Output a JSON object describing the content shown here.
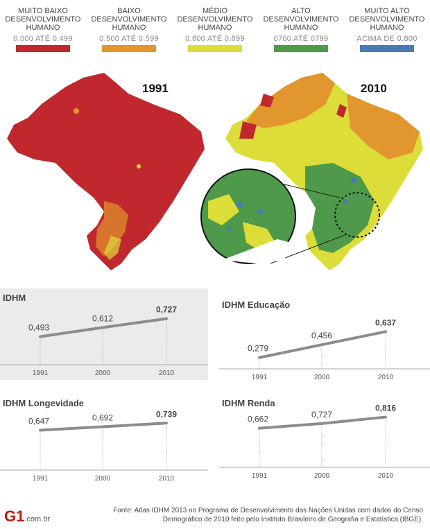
{
  "legend": [
    {
      "label": "MUITO BAIXO DESENVOLVIMENTO HUMANO",
      "range": "0.000 ATÉ 0.499",
      "color": "#c0282d"
    },
    {
      "label": "BAIXO DESENVOLVIMENTO HUMANO",
      "range": "0.500 ATÉ 0.599",
      "color": "#e2962e"
    },
    {
      "label": "MÉDIO DESENVOLVIMENTO HUMANO",
      "range": "0.600 ATÉ 0.699",
      "color": "#dddd3a"
    },
    {
      "label": "ALTO DESENVOLVIMENTO HUMANO",
      "range": "0700 ATÉ 0799",
      "color": "#4e9a4a"
    },
    {
      "label": "MUITO ALTO DESENVOLVIMENTO HUMANO",
      "range": "ACIMA DE 0.800",
      "color": "#4a7ab4"
    }
  ],
  "maps": {
    "left_year": "1991",
    "right_year": "2010"
  },
  "chart_data": [
    {
      "type": "line",
      "title": "IDHM",
      "x": [
        "1991",
        "2000",
        "2010"
      ],
      "values": [
        0.493,
        0.612,
        0.727
      ],
      "labels": [
        "0,493",
        "0,612",
        "0,727"
      ],
      "ylim": [
        0.2,
        0.85
      ],
      "background": "#ebebeb"
    },
    {
      "type": "line",
      "title": "IDHM Educação",
      "x": [
        "1991",
        "2000",
        "2010"
      ],
      "values": [
        0.279,
        0.456,
        0.637
      ],
      "labels": [
        "0,279",
        "0,456",
        "0,637"
      ],
      "ylim": [
        0.2,
        0.85
      ],
      "background": "#ffffff"
    },
    {
      "type": "line",
      "title": "IDHM Longevidade",
      "x": [
        "1991",
        "2000",
        "2010"
      ],
      "values": [
        0.647,
        0.692,
        0.739
      ],
      "labels": [
        "0,647",
        "0,692",
        "0,739"
      ],
      "ylim": [
        0.2,
        0.85
      ],
      "background": "#ffffff"
    },
    {
      "type": "line",
      "title": "IDHM Renda",
      "x": [
        "1991",
        "2000",
        "2010"
      ],
      "values": [
        0.662,
        0.727,
        0.816
      ],
      "labels": [
        "0,662",
        "0,727",
        "0,816"
      ],
      "ylim": [
        0.2,
        0.85
      ],
      "background": "#ffffff"
    }
  ],
  "footer": {
    "logo": "G1",
    "domain": ".com.br",
    "source": "Fonte: Atlas IDHM 2013 no Programa de Desenvolvimento das Nações Unidas com dados do Censo Demográfico de 2010 feito pelo Instituto Brasileiro de Geografia e Estatística (IBGE)."
  }
}
